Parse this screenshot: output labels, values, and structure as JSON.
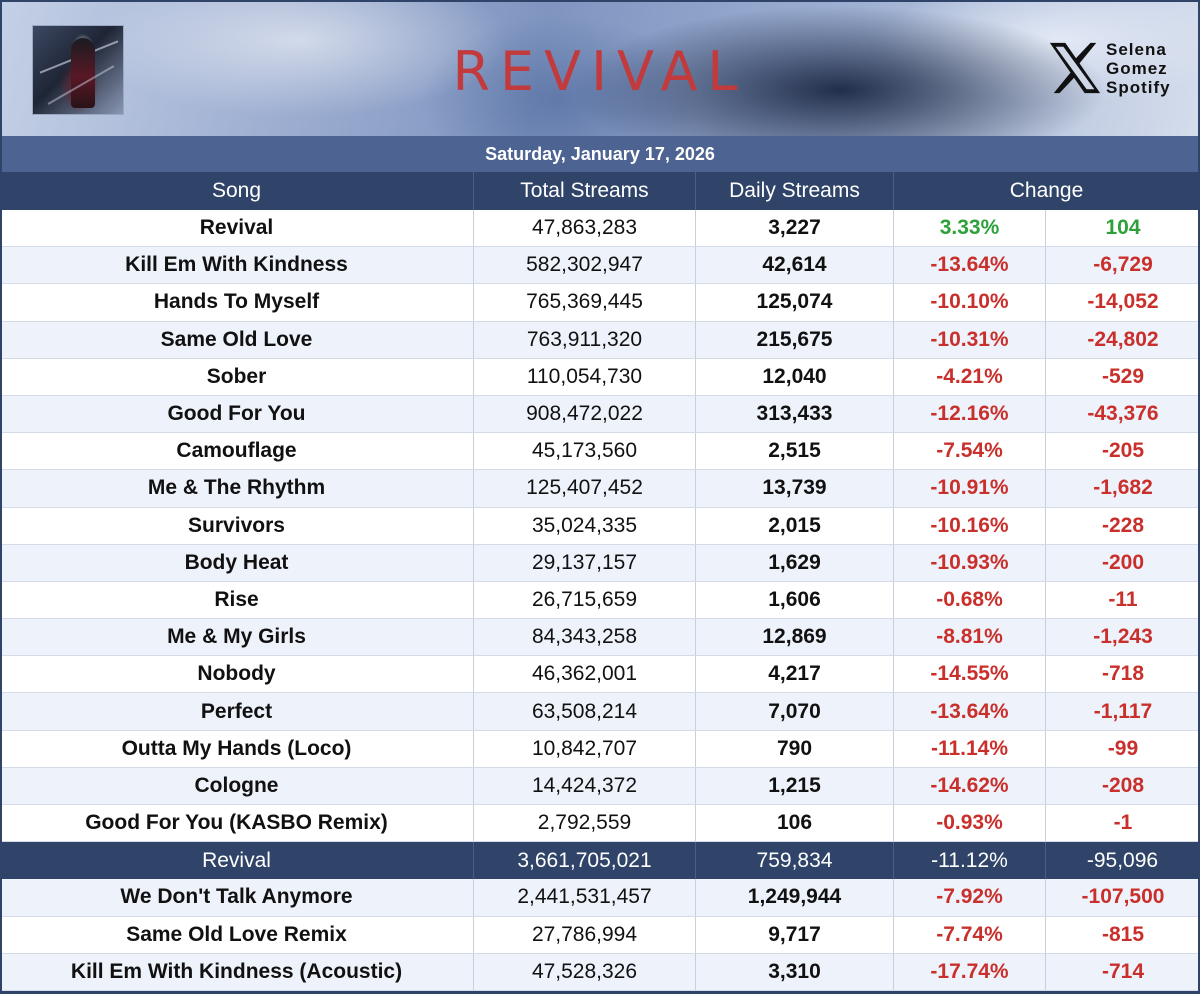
{
  "banner": {
    "title": "REVIVAL",
    "brand_lines": [
      "Selena",
      "Gomez",
      "Spotify"
    ],
    "brand_icon": "x-logo-icon"
  },
  "date": "Saturday, January 17, 2026",
  "columns": {
    "song": "Song",
    "total": "Total Streams",
    "daily": "Daily Streams",
    "change": "Change"
  },
  "colors": {
    "header_bg": "#2f4468",
    "date_bar_bg": "#4d6392",
    "positive": "#2ea13a",
    "negative": "#c9302c",
    "title_red": "#c23a3c"
  },
  "rows": [
    {
      "song": "Revival",
      "total": "47,863,283",
      "daily": "3,227",
      "pct": "3.33%",
      "abs": "104",
      "dir": "pos"
    },
    {
      "song": "Kill Em With Kindness",
      "total": "582,302,947",
      "daily": "42,614",
      "pct": "-13.64%",
      "abs": "-6,729",
      "dir": "neg"
    },
    {
      "song": "Hands To Myself",
      "total": "765,369,445",
      "daily": "125,074",
      "pct": "-10.10%",
      "abs": "-14,052",
      "dir": "neg"
    },
    {
      "song": "Same Old Love",
      "total": "763,911,320",
      "daily": "215,675",
      "pct": "-10.31%",
      "abs": "-24,802",
      "dir": "neg"
    },
    {
      "song": "Sober",
      "total": "110,054,730",
      "daily": "12,040",
      "pct": "-4.21%",
      "abs": "-529",
      "dir": "neg"
    },
    {
      "song": "Good For You",
      "total": "908,472,022",
      "daily": "313,433",
      "pct": "-12.16%",
      "abs": "-43,376",
      "dir": "neg"
    },
    {
      "song": "Camouflage",
      "total": "45,173,560",
      "daily": "2,515",
      "pct": "-7.54%",
      "abs": "-205",
      "dir": "neg"
    },
    {
      "song": "Me & The Rhythm",
      "total": "125,407,452",
      "daily": "13,739",
      "pct": "-10.91%",
      "abs": "-1,682",
      "dir": "neg"
    },
    {
      "song": "Survivors",
      "total": "35,024,335",
      "daily": "2,015",
      "pct": "-10.16%",
      "abs": "-228",
      "dir": "neg"
    },
    {
      "song": "Body Heat",
      "total": "29,137,157",
      "daily": "1,629",
      "pct": "-10.93%",
      "abs": "-200",
      "dir": "neg"
    },
    {
      "song": "Rise",
      "total": "26,715,659",
      "daily": "1,606",
      "pct": "-0.68%",
      "abs": "-11",
      "dir": "neg"
    },
    {
      "song": "Me & My Girls",
      "total": "84,343,258",
      "daily": "12,869",
      "pct": "-8.81%",
      "abs": "-1,243",
      "dir": "neg"
    },
    {
      "song": "Nobody",
      "total": "46,362,001",
      "daily": "4,217",
      "pct": "-14.55%",
      "abs": "-718",
      "dir": "neg"
    },
    {
      "song": "Perfect",
      "total": "63,508,214",
      "daily": "7,070",
      "pct": "-13.64%",
      "abs": "-1,117",
      "dir": "neg"
    },
    {
      "song": "Outta My Hands (Loco)",
      "total": "10,842,707",
      "daily": "790",
      "pct": "-11.14%",
      "abs": "-99",
      "dir": "neg"
    },
    {
      "song": "Cologne",
      "total": "14,424,372",
      "daily": "1,215",
      "pct": "-14.62%",
      "abs": "-208",
      "dir": "neg"
    },
    {
      "song": "Good For You (KASBO Remix)",
      "total": "2,792,559",
      "daily": "106",
      "pct": "-0.93%",
      "abs": "-1",
      "dir": "neg"
    }
  ],
  "album_total": {
    "song": "Revival",
    "total": "3,661,705,021",
    "daily": "759,834",
    "pct": "-11.12%",
    "abs": "-95,096"
  },
  "extra_rows": [
    {
      "song": "We Don't Talk Anymore",
      "total": "2,441,531,457",
      "daily": "1,249,944",
      "pct": "-7.92%",
      "abs": "-107,500",
      "dir": "neg"
    },
    {
      "song": "Same Old Love Remix",
      "total": "27,786,994",
      "daily": "9,717",
      "pct": "-7.74%",
      "abs": "-815",
      "dir": "neg"
    },
    {
      "song": "Kill Em With Kindness (Acoustic)",
      "total": "47,528,326",
      "daily": "3,310",
      "pct": "-17.74%",
      "abs": "-714",
      "dir": "neg"
    }
  ]
}
